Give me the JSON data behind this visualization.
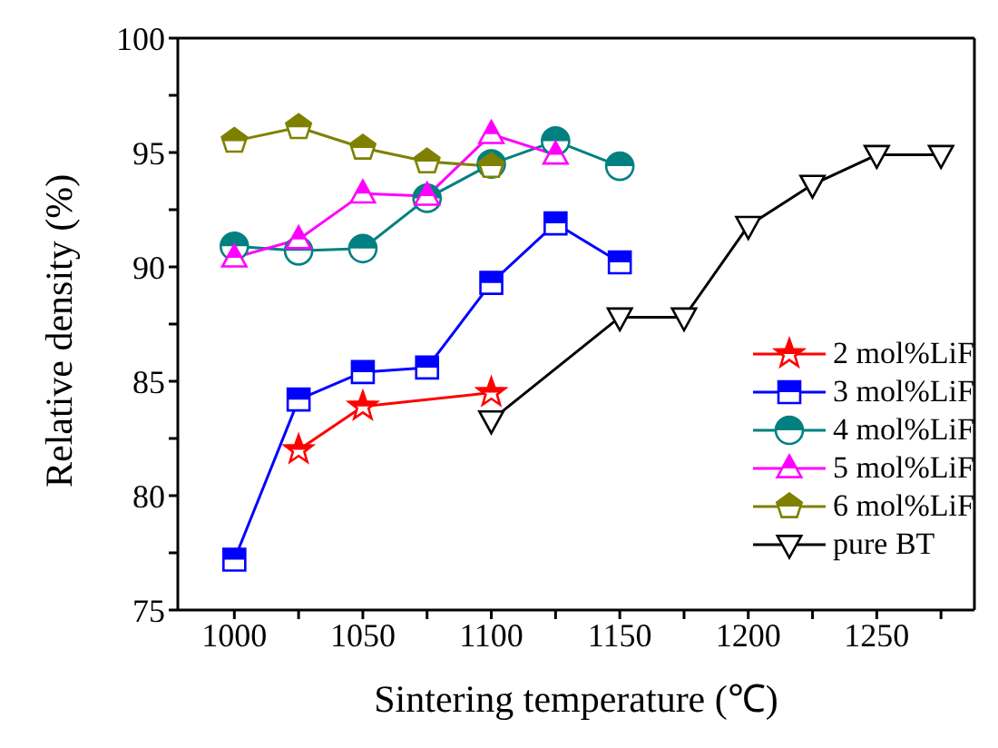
{
  "chart_data": {
    "type": "line",
    "xlabel": "Sintering temperature (℃)",
    "ylabel": "Relative density (%)",
    "xlim": [
      978,
      1288
    ],
    "xticks": [
      1000,
      {
        "value": 1025,
        "label": null
      },
      1050,
      {
        "value": 1075,
        "label": null
      },
      1100,
      {
        "value": 1125,
        "label": null
      },
      1150,
      {
        "value": 1175,
        "label": null
      },
      1200,
      {
        "value": 1225,
        "label": null
      },
      1250,
      {
        "value": 1275,
        "label": null
      }
    ],
    "ylim": [
      75,
      100
    ],
    "yticks": [
      75,
      {
        "value": 77.5,
        "label": null
      },
      80,
      {
        "value": 82.5,
        "label": null
      },
      85,
      {
        "value": 87.5,
        "label": null
      },
      90,
      {
        "value": 92.5,
        "label": null
      },
      95,
      {
        "value": 97.5,
        "label": null
      },
      100
    ],
    "grid": false,
    "legend": "bottom right",
    "line_style": "solid",
    "series": [
      {
        "name": "2 mol%LiF",
        "color": "#ff0000",
        "marker": "star",
        "x": [
          1025,
          1050,
          1100
        ],
        "values": [
          82.0,
          83.9,
          84.5
        ]
      },
      {
        "name": "3 mol%LiF",
        "color": "#0000ff",
        "marker": "square",
        "x": [
          1000,
          1025,
          1050,
          1075,
          1100,
          1125,
          1150
        ],
        "values": [
          77.2,
          84.2,
          85.4,
          85.6,
          89.3,
          91.9,
          90.2
        ]
      },
      {
        "name": "4 mol%LiF",
        "color": "#008080",
        "marker": "circle",
        "x": [
          1000,
          1025,
          1050,
          1075,
          1100,
          1125,
          1150
        ],
        "values": [
          90.9,
          90.7,
          90.8,
          93.0,
          94.5,
          95.5,
          94.4
        ]
      },
      {
        "name": "5 mol%LiF",
        "color": "#ff00ff",
        "marker": "triangle",
        "x": [
          1000,
          1025,
          1050,
          1075,
          1100,
          1125
        ],
        "values": [
          90.4,
          91.2,
          93.2,
          93.1,
          95.8,
          94.9
        ]
      },
      {
        "name": "6 mol%LiF",
        "color": "#808000",
        "marker": "diamond",
        "x": [
          1000,
          1025,
          1050,
          1075,
          1100
        ],
        "values": [
          95.5,
          96.1,
          95.2,
          94.6,
          94.4
        ]
      },
      {
        "name": "pure BT",
        "color": "#000000",
        "marker": "triangle-down",
        "x": [
          1100,
          1150,
          1175,
          1200,
          1225,
          1250,
          1275
        ],
        "values": [
          83.3,
          87.8,
          87.8,
          91.8,
          93.6,
          94.9,
          94.9
        ]
      }
    ]
  }
}
